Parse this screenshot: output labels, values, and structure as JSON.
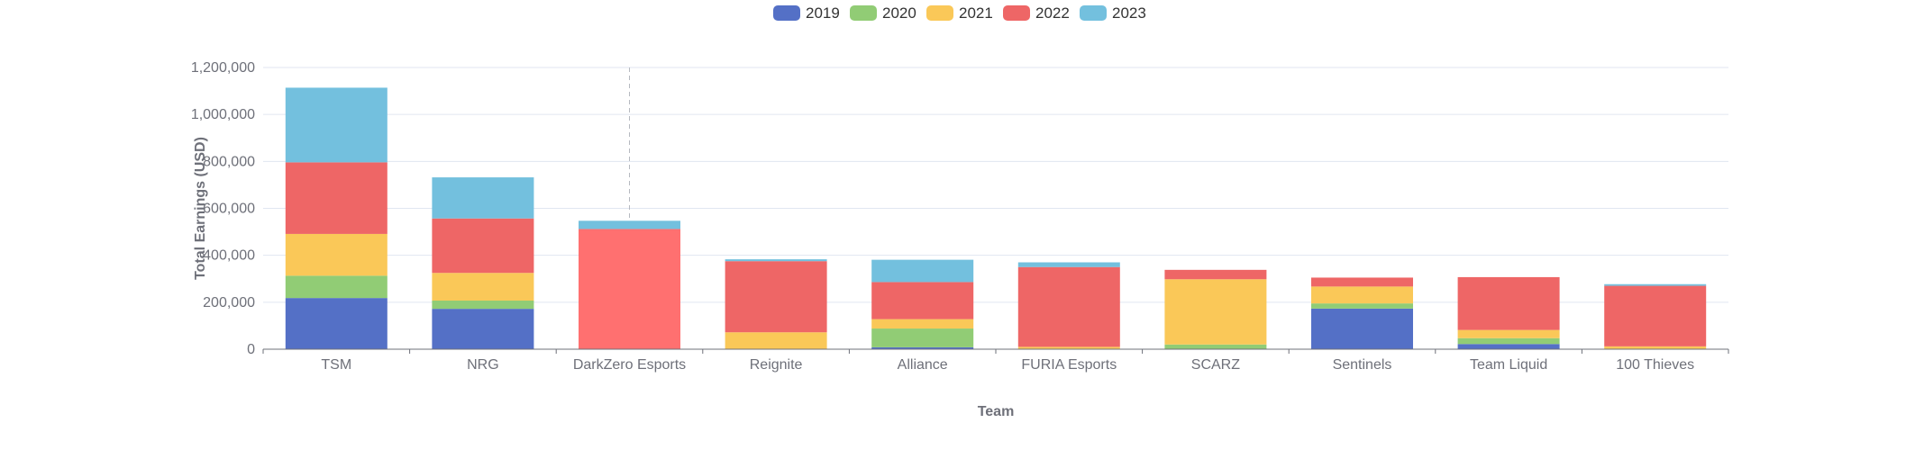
{
  "chart_data": {
    "type": "bar",
    "stacked": true,
    "categories": [
      "TSM",
      "NRG",
      "DarkZero Esports",
      "Reignite",
      "Alliance",
      "FURIA Esports",
      "SCARZ",
      "Sentinels",
      "Team Liquid",
      "100 Thieves"
    ],
    "series": [
      {
        "name": "2019",
        "color": "#5470c6",
        "values": [
          218000,
          172000,
          0,
          0,
          8000,
          0,
          0,
          173000,
          22000,
          0
        ]
      },
      {
        "name": "2020",
        "color": "#91cc75",
        "values": [
          95000,
          35000,
          0,
          0,
          80000,
          0,
          20000,
          22000,
          25000,
          0
        ]
      },
      {
        "name": "2021",
        "color": "#fac858",
        "values": [
          178000,
          118000,
          0,
          72000,
          40000,
          10000,
          278000,
          72000,
          35000,
          12000
        ]
      },
      {
        "name": "2022",
        "color": "#ee6666",
        "values": [
          305000,
          232000,
          512000,
          303000,
          158000,
          340000,
          40000,
          38000,
          225000,
          258000
        ]
      },
      {
        "name": "2023",
        "color": "#73c0de",
        "values": [
          318000,
          175000,
          35000,
          8000,
          95000,
          20000,
          0,
          0,
          0,
          7000
        ]
      }
    ],
    "xlabel": "Team",
    "ylabel": "Total Earnings (USD)",
    "ylim": [
      0,
      1200000
    ],
    "yticks": [
      "0",
      "200,000",
      "400,000",
      "600,000",
      "800,000",
      "1,000,000",
      "1,200,000"
    ],
    "ytick_values": [
      0,
      200000,
      400000,
      600000,
      800000,
      1000000,
      1200000
    ],
    "legend_position": "top-center",
    "grid": true,
    "highlighted_category": "DarkZero Esports",
    "highlight_color": "#ff7070"
  }
}
